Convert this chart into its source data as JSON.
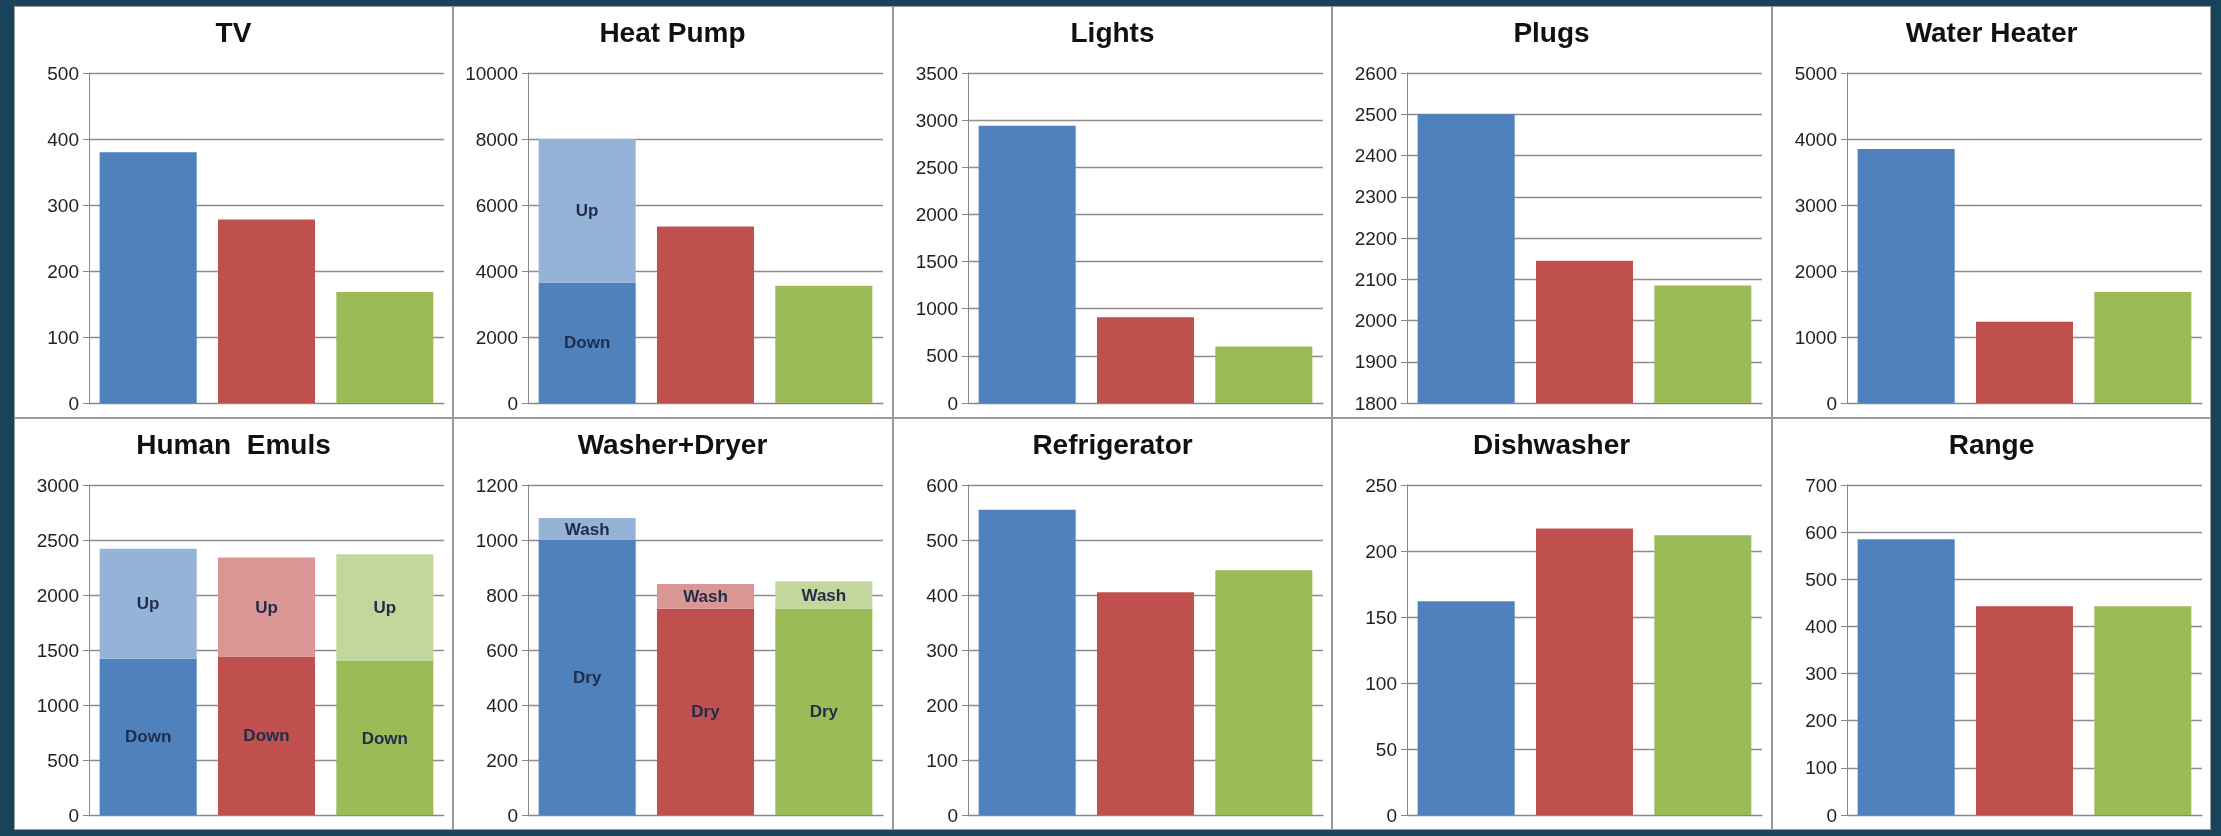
{
  "chart_data": [
    {
      "type": "bar",
      "title": "TV",
      "categories": [
        null,
        null,
        null
      ],
      "values": [
        380,
        278,
        168
      ],
      "colors": [
        "#4f81bd",
        "#c0504d",
        "#9bbb59"
      ],
      "ylim": [
        0,
        500
      ],
      "yticks": [
        0,
        100,
        200,
        300,
        400,
        500
      ],
      "grid": "y",
      "tick_labels": "y"
    },
    {
      "type": "bar",
      "title": "Heat Pump",
      "categories": [
        null,
        null,
        null
      ],
      "stacked": true,
      "series": [
        {
          "name": "Down",
          "values": [
            3650,
            null,
            null
          ],
          "colors": [
            "#4f81bd",
            "#c0504d",
            "#9bbb59"
          ]
        },
        {
          "name": "Up",
          "values": [
            4350,
            null,
            null
          ],
          "colors": [
            "#95b3d7",
            "#d99694",
            "#c3d69b"
          ]
        },
        {
          "values": [
            null,
            5350,
            3550
          ],
          "colors": [
            "#4f81bd",
            "#c0504d",
            "#9bbb59"
          ]
        }
      ],
      "ylim": [
        0,
        10000
      ],
      "yticks": [
        0,
        2000,
        4000,
        6000,
        8000,
        10000
      ],
      "grid": "y",
      "tick_labels": "y"
    },
    {
      "type": "bar",
      "title": "Lights",
      "categories": [
        null,
        null,
        null
      ],
      "values": [
        2940,
        910,
        600
      ],
      "colors": [
        "#4f81bd",
        "#c0504d",
        "#9bbb59"
      ],
      "ylim": [
        0,
        3500
      ],
      "yticks": [
        0,
        500,
        1000,
        1500,
        2000,
        2500,
        3000,
        3500
      ],
      "grid": "y",
      "tick_labels": "y"
    },
    {
      "type": "bar",
      "title": "Plugs",
      "categories": [
        null,
        null,
        null
      ],
      "values": [
        2500,
        2145,
        2085
      ],
      "colors": [
        "#4f81bd",
        "#c0504d",
        "#9bbb59"
      ],
      "ylim": [
        1800,
        2600
      ],
      "yticks": [
        1800,
        1900,
        2000,
        2100,
        2200,
        2300,
        2400,
        2500,
        2600
      ],
      "grid": "y",
      "tick_labels": "y"
    },
    {
      "type": "bar",
      "title": "Water Heater",
      "categories": [
        null,
        null,
        null
      ],
      "values": [
        3850,
        1230,
        1680
      ],
      "colors": [
        "#4f81bd",
        "#c0504d",
        "#9bbb59"
      ],
      "ylim": [
        0,
        5000
      ],
      "yticks": [
        0,
        1000,
        2000,
        3000,
        4000,
        5000
      ],
      "grid": "y",
      "tick_labels": "y"
    },
    {
      "type": "bar",
      "title": "Human  Emuls",
      "categories": [
        null,
        null,
        null
      ],
      "stacked": true,
      "series": [
        {
          "name": "Down",
          "values": [
            1420,
            1440,
            1400
          ],
          "colors": [
            "#4f81bd",
            "#c0504d",
            "#9bbb59"
          ]
        },
        {
          "name": "Up",
          "values": [
            1000,
            900,
            970
          ],
          "colors": [
            "#95b3d7",
            "#d99694",
            "#c3d69b"
          ]
        }
      ],
      "ylim": [
        0,
        3000
      ],
      "yticks": [
        0,
        500,
        1000,
        1500,
        2000,
        2500,
        3000
      ],
      "grid": "y",
      "tick_labels": "y"
    },
    {
      "type": "bar",
      "title": "Washer+Dryer",
      "categories": [
        null,
        null,
        null
      ],
      "stacked": true,
      "series": [
        {
          "name": "Dry",
          "values": [
            1000,
            750,
            750
          ],
          "colors": [
            "#4f81bd",
            "#c0504d",
            "#9bbb59"
          ]
        },
        {
          "name": "Wash",
          "values": [
            80,
            90,
            100
          ],
          "colors": [
            "#95b3d7",
            "#d99694",
            "#c3d69b"
          ]
        }
      ],
      "ylim": [
        0,
        1200
      ],
      "yticks": [
        0,
        200,
        400,
        600,
        800,
        1000,
        1200
      ],
      "grid": "y",
      "tick_labels": "y"
    },
    {
      "type": "bar",
      "title": "Refrigerator",
      "categories": [
        null,
        null,
        null
      ],
      "values": [
        555,
        405,
        445
      ],
      "colors": [
        "#4f81bd",
        "#c0504d",
        "#9bbb59"
      ],
      "ylim": [
        0,
        600
      ],
      "yticks": [
        0,
        100,
        200,
        300,
        400,
        500,
        600
      ],
      "grid": "y",
      "tick_labels": "y"
    },
    {
      "type": "bar",
      "title": "Dishwasher",
      "categories": [
        null,
        null,
        null
      ],
      "values": [
        162,
        217,
        212
      ],
      "colors": [
        "#4f81bd",
        "#c0504d",
        "#9bbb59"
      ],
      "ylim": [
        0,
        250
      ],
      "yticks": [
        0,
        50,
        100,
        150,
        200,
        250
      ],
      "grid": "y",
      "tick_labels": "y"
    },
    {
      "type": "bar",
      "title": "Range",
      "categories": [
        null,
        null,
        null
      ],
      "values": [
        585,
        443,
        443
      ],
      "colors": [
        "#4f81bd",
        "#c0504d",
        "#9bbb59"
      ],
      "ylim": [
        0,
        700
      ],
      "yticks": [
        0,
        100,
        200,
        300,
        400,
        500,
        600,
        700
      ],
      "grid": "y",
      "tick_labels": "y"
    }
  ]
}
